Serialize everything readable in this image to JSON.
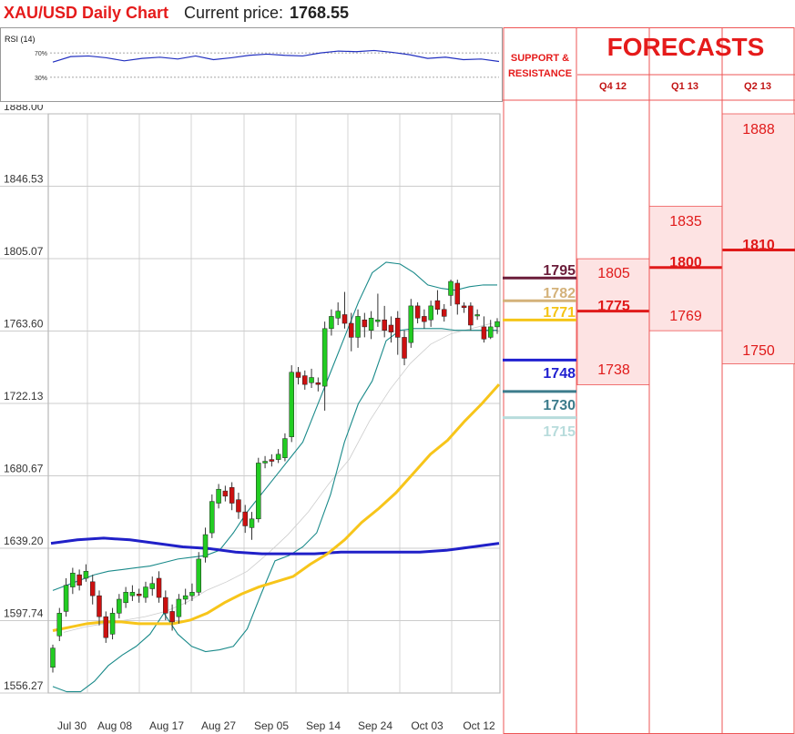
{
  "header": {
    "title": "XAU/USD Daily Chart",
    "price_label": "Current price:",
    "price_value": "1768.55"
  },
  "chart_data": [
    {
      "type": "line",
      "title": "RSI (14)",
      "ylim": [
        0,
        100
      ],
      "yticks": [
        "70%",
        "30%"
      ],
      "series": [
        {
          "values": [
            55,
            64,
            65,
            62,
            57,
            61,
            63,
            60,
            65,
            59,
            62,
            66,
            68,
            66,
            65,
            70,
            73,
            72,
            74,
            71,
            67,
            61,
            63,
            59,
            60,
            56
          ]
        }
      ]
    },
    {
      "type": "candlestick",
      "ylim": [
        1556.27,
        1888.0
      ],
      "yticks": [
        "1888.00",
        "1846.53",
        "1805.07",
        "1763.60",
        "1722.13",
        "1680.67",
        "1639.20",
        "1597.74",
        "1556.27"
      ],
      "xticks": [
        "Jul 30",
        "Aug 08",
        "Aug 17",
        "Aug 27",
        "Sep 05",
        "Sep 14",
        "Sep 24",
        "Oct 03",
        "Oct 12"
      ],
      "candles": [
        [
          1571,
          1582,
          1568,
          1584
        ],
        [
          1589,
          1602,
          1586,
          1605
        ],
        [
          1603,
          1618,
          1600,
          1622
        ],
        [
          1617,
          1625,
          1613,
          1628
        ],
        [
          1624,
          1618,
          1615,
          1627
        ],
        [
          1622,
          1626,
          1620,
          1630
        ],
        [
          1620,
          1612,
          1607,
          1624
        ],
        [
          1612,
          1600,
          1595,
          1615
        ],
        [
          1600,
          1588,
          1585,
          1603
        ],
        [
          1590,
          1602,
          1587,
          1605
        ],
        [
          1602,
          1610,
          1599,
          1613
        ],
        [
          1608,
          1614,
          1605,
          1617
        ],
        [
          1612,
          1614,
          1609,
          1618
        ],
        [
          1613,
          1612,
          1608,
          1616
        ],
        [
          1611,
          1617,
          1608,
          1620
        ],
        [
          1616,
          1619,
          1612,
          1623
        ],
        [
          1622,
          1611,
          1608,
          1626
        ],
        [
          1611,
          1602,
          1598,
          1615
        ],
        [
          1603,
          1597,
          1592,
          1607
        ],
        [
          1600,
          1610,
          1596,
          1613
        ],
        [
          1610,
          1612,
          1607,
          1616
        ],
        [
          1612,
          1614,
          1609,
          1619
        ],
        [
          1614,
          1633,
          1612,
          1637
        ],
        [
          1634,
          1647,
          1631,
          1651
        ],
        [
          1648,
          1666,
          1645,
          1670
        ],
        [
          1665,
          1673,
          1662,
          1676
        ],
        [
          1672,
          1669,
          1666,
          1675
        ],
        [
          1674,
          1665,
          1661,
          1677
        ],
        [
          1667,
          1660,
          1656,
          1671
        ],
        [
          1660,
          1652,
          1648,
          1664
        ],
        [
          1651,
          1656,
          1644,
          1660
        ],
        [
          1656,
          1688,
          1654,
          1691
        ],
        [
          1688,
          1689,
          1685,
          1692
        ],
        [
          1690,
          1689,
          1686,
          1693
        ],
        [
          1690,
          1693,
          1688,
          1696
        ],
        [
          1691,
          1702,
          1689,
          1705
        ],
        [
          1703,
          1740,
          1700,
          1744
        ],
        [
          1740,
          1737,
          1733,
          1743
        ],
        [
          1738,
          1733,
          1730,
          1741
        ],
        [
          1734,
          1737,
          1731,
          1742
        ],
        [
          1734,
          1733,
          1729,
          1737
        ],
        [
          1732,
          1765,
          1718,
          1769
        ],
        [
          1765,
          1772,
          1761,
          1776
        ],
        [
          1771,
          1775,
          1767,
          1780
        ],
        [
          1773,
          1768,
          1765,
          1786
        ],
        [
          1768,
          1760,
          1752,
          1774
        ],
        [
          1760,
          1772,
          1754,
          1776
        ],
        [
          1770,
          1766,
          1760,
          1774
        ],
        [
          1764,
          1771,
          1759,
          1775
        ],
        [
          1769,
          1770,
          1766,
          1785
        ],
        [
          1770,
          1764,
          1760,
          1778
        ],
        [
          1767,
          1763,
          1757,
          1772
        ],
        [
          1771,
          1760,
          1750,
          1775
        ],
        [
          1760,
          1748,
          1744,
          1764
        ],
        [
          1757,
          1778,
          1754,
          1782
        ],
        [
          1778,
          1771,
          1768,
          1780
        ],
        [
          1772,
          1769,
          1765,
          1776
        ],
        [
          1770,
          1778,
          1766,
          1781
        ],
        [
          1781,
          1776,
          1773,
          1787
        ],
        [
          1776,
          1772,
          1769,
          1779
        ],
        [
          1784,
          1792,
          1778,
          1793
        ],
        [
          1791,
          1779,
          1773,
          1793
        ],
        [
          1778,
          1777,
          1774,
          1780
        ],
        [
          1778,
          1767,
          1764,
          1780
        ],
        [
          1773,
          1773,
          1770,
          1776
        ],
        [
          1766,
          1759,
          1757,
          1772
        ],
        [
          1760,
          1766,
          1759,
          1770
        ],
        [
          1766,
          1769,
          1762,
          1771
        ]
      ],
      "overlays": [
        {
          "name": "bollinger-upper",
          "color": "#1a8a8a",
          "values": [
            1615,
            1618,
            1621,
            1624,
            1626,
            1627,
            1628,
            1629,
            1631,
            1633,
            1634,
            1635,
            1638,
            1648,
            1660,
            1670,
            1680,
            1690,
            1700,
            1720,
            1740,
            1760,
            1780,
            1797,
            1803,
            1802,
            1797,
            1790,
            1788,
            1787,
            1789,
            1790,
            1790
          ]
        },
        {
          "name": "bollinger-lower",
          "color": "#1a8a8a",
          "values": [
            1560,
            1557,
            1557,
            1563,
            1572,
            1578,
            1583,
            1590,
            1602,
            1590,
            1583,
            1580,
            1581,
            1583,
            1593,
            1613,
            1632,
            1635,
            1640,
            1648,
            1670,
            1700,
            1722,
            1735,
            1758,
            1764,
            1765,
            1765,
            1765,
            1764,
            1764,
            1764,
            1764
          ]
        },
        {
          "name": "sma-50",
          "color": "#f7c51a",
          "values": [
            1592,
            1594,
            1596,
            1597,
            1597,
            1596,
            1596,
            1596,
            1598,
            1602,
            1608,
            1613,
            1617,
            1620,
            1623,
            1630,
            1636,
            1644,
            1654,
            1662,
            1671,
            1682,
            1693,
            1701,
            1712,
            1722,
            1733
          ]
        },
        {
          "name": "sma-200",
          "color": "#2020c8",
          "values": [
            1642,
            1644,
            1645,
            1644,
            1642,
            1640,
            1639,
            1637,
            1636,
            1636,
            1636,
            1637,
            1637,
            1637,
            1637,
            1638,
            1640,
            1642
          ]
        },
        {
          "name": "sma-20",
          "color": "#cccccc",
          "values": [
            1591,
            1594,
            1596,
            1598,
            1600,
            1603,
            1608,
            1615,
            1620,
            1626,
            1636,
            1647,
            1660,
            1676,
            1690,
            1712,
            1730,
            1745,
            1756,
            1762,
            1765,
            1768
          ]
        }
      ]
    }
  ],
  "sr": {
    "title_line1": "SUPPORT &",
    "title_line2": "RESISTANCE",
    "levels": [
      {
        "value": "1795",
        "color": "#6b1d3a"
      },
      {
        "value": "1782",
        "color": "#d4b27a"
      },
      {
        "value": "1771",
        "color": "#f5c518"
      },
      {
        "value": "1748",
        "color": "#2020d0"
      },
      {
        "value": "1730",
        "color": "#3d7c8c"
      },
      {
        "value": "1715",
        "color": "#b8dcdc"
      }
    ]
  },
  "forecasts": {
    "title": "FORECASTS",
    "quarters": [
      {
        "label": "Q4 12",
        "high": "1805",
        "mid": "1775",
        "low": "1738"
      },
      {
        "label": "Q1 13",
        "high": "1835",
        "mid": "1800",
        "low": "1769"
      },
      {
        "label": "Q2 13",
        "high": "1888",
        "mid": "1810",
        "low": "1750"
      }
    ]
  },
  "colors": {
    "accent": "#e51b1b",
    "grid": "#bbbbbb",
    "forecast_fill": "#fde3e3",
    "candle_up": "#22cc22",
    "candle_down": "#cc1010"
  }
}
